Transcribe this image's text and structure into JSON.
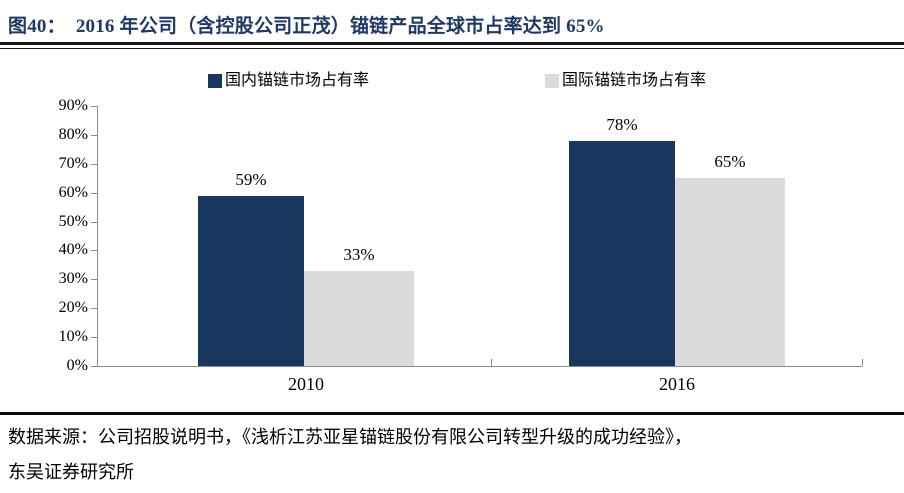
{
  "figure": {
    "label": "图40：",
    "title": "2016 年公司（含控股公司正茂）锚链产品全球市占率达到 65%"
  },
  "chart_data": {
    "type": "bar",
    "categories": [
      "2010",
      "2016"
    ],
    "series": [
      {
        "name": "国内锚链市场占有率",
        "color": "#17375E",
        "values": [
          59,
          78
        ]
      },
      {
        "name": "国际锚链市场占有率",
        "color": "#DBDBDB",
        "values": [
          33,
          65
        ]
      }
    ],
    "value_label_unit": "%",
    "ylim": [
      0,
      90
    ],
    "ytick_labels": [
      "0%",
      "10%",
      "20%",
      "30%",
      "40%",
      "50%",
      "60%",
      "70%",
      "80%",
      "90%"
    ],
    "grid": false,
    "legend_position": "top"
  },
  "footer": {
    "source_line1": "数据来源：公司招股说明书，《浅析江苏亚星锚链股份有限公司转型升级的成功经验》，",
    "source_line2": "东吴证券研究所"
  },
  "colors": {
    "title_text": "#1F3864",
    "axis": "#8C8C8C",
    "header_rule": "#15151F",
    "footer_rule": "#0C0C0C"
  }
}
